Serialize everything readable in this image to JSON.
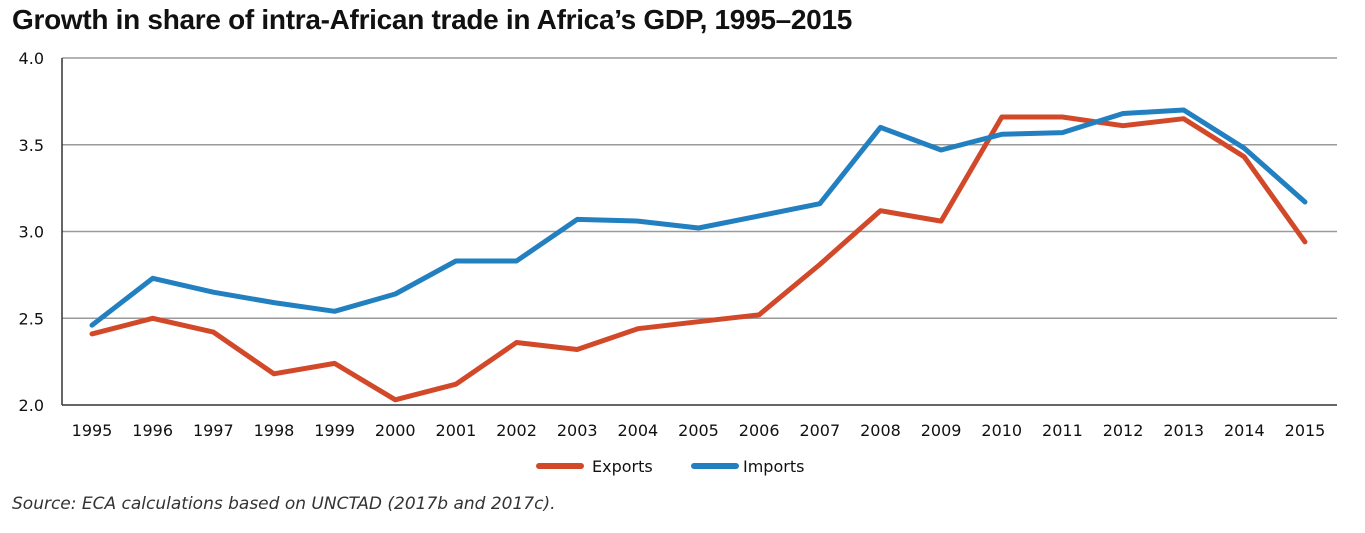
{
  "chart_data": {
    "type": "line",
    "title": "Growth in share of intra-African trade in Africa’s GDP, 1995–2015",
    "source": "Source: ECA calculations based on UNCTAD (2017b and 2017c).",
    "x": [
      "1995",
      "1996",
      "1997",
      "1998",
      "1999",
      "2000",
      "2001",
      "2002",
      "2003",
      "2004",
      "2005",
      "2006",
      "2007",
      "2008",
      "2009",
      "2010",
      "2011",
      "2012",
      "2013",
      "2014",
      "2015"
    ],
    "ylim": [
      2.0,
      4.0
    ],
    "yticks": [
      "2.0",
      "2.5",
      "3.0",
      "3.5",
      "4.0"
    ],
    "grid": true,
    "legend_position": "bottom-center",
    "series": [
      {
        "name": "Exports",
        "color": "#d2492a",
        "values": [
          2.41,
          2.5,
          2.42,
          2.18,
          2.24,
          2.03,
          2.12,
          2.36,
          2.32,
          2.44,
          2.48,
          2.52,
          2.81,
          3.12,
          3.06,
          3.66,
          3.66,
          3.61,
          3.65,
          3.43,
          2.94
        ]
      },
      {
        "name": "Imports",
        "color": "#2280c0",
        "values": [
          2.46,
          2.73,
          2.65,
          2.59,
          2.54,
          2.64,
          2.83,
          2.83,
          3.07,
          3.06,
          3.02,
          3.09,
          3.16,
          3.6,
          3.47,
          3.56,
          3.57,
          3.68,
          3.7,
          3.48,
          3.17
        ]
      }
    ]
  }
}
